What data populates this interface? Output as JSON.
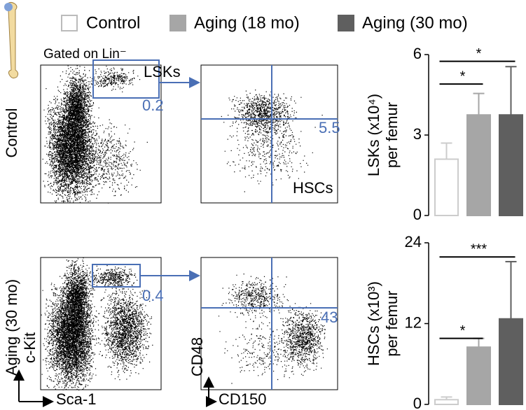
{
  "legend": [
    {
      "name": "Control",
      "color": "#ffffff"
    },
    {
      "name": "Aging (18 mo)",
      "color": "#a6a6a6"
    },
    {
      "name": "Aging (30 mo)",
      "color": "#5f5f5f"
    }
  ],
  "flow_plots": {
    "gating_label": "Gated on Lin⁻",
    "lsk_label": "LSKs",
    "hsc_label": "HSCs",
    "x_label_left": "Sca-1",
    "y_label_left": "c-Kit",
    "x_label_right": "CD150",
    "y_label_right": "CD48",
    "rows": [
      {
        "label": "Control",
        "lsk_gate": "0.2",
        "hsc_gate": "5.5"
      },
      {
        "label": "Aging  (30 mo)",
        "lsk_gate": "0.4",
        "hsc_gate": "43"
      }
    ]
  },
  "chart_data": [
    {
      "type": "bar",
      "ylabel": [
        "LSKs (x10⁴)",
        "per femur"
      ],
      "values": [
        2.1,
        3.75,
        3.75
      ],
      "errors": [
        0.6,
        0.8,
        1.8
      ],
      "ylim": [
        0,
        6
      ],
      "yticks": [
        0,
        3,
        6
      ],
      "annotations": [
        {
          "from": 0,
          "to": 1,
          "y": 4.9,
          "label": "*"
        },
        {
          "from": 0,
          "to": 2,
          "y": 5.75,
          "label": "*"
        }
      ]
    },
    {
      "type": "bar",
      "ylabel": [
        "HSCs (x10³)",
        "per femur"
      ],
      "values": [
        0.7,
        8.5,
        12.7
      ],
      "errors": [
        0.4,
        1.3,
        8.5
      ],
      "ylim": [
        0,
        24
      ],
      "yticks": [
        0,
        12,
        24
      ],
      "annotations": [
        {
          "from": 0,
          "to": 1,
          "y": 9.8,
          "label": "*"
        },
        {
          "from": 0,
          "to": 2,
          "y": 21.9,
          "label": "***"
        }
      ]
    }
  ]
}
